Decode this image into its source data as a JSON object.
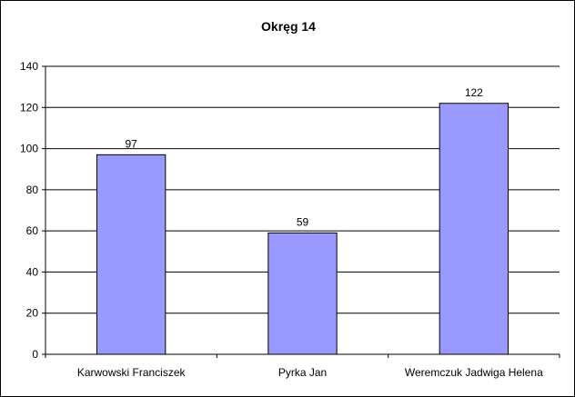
{
  "chart_data": {
    "type": "bar",
    "title": "Okręg 14",
    "xlabel": "",
    "ylabel": "",
    "categories": [
      "Karwowski Franciszek",
      "Pyrka Jan",
      "Weremczuk Jadwiga Helena"
    ],
    "values": [
      97,
      59,
      122
    ],
    "data_labels": [
      "97",
      "59",
      "122"
    ],
    "ylim": [
      0,
      140
    ],
    "yticks": [
      0,
      20,
      40,
      60,
      80,
      100,
      120,
      140
    ],
    "grid": true,
    "legend": "none",
    "colors": {
      "bar_fill": "#9999ff",
      "bar_stroke": "#000000",
      "grid": "#000000",
      "background": "#ffffff"
    }
  }
}
